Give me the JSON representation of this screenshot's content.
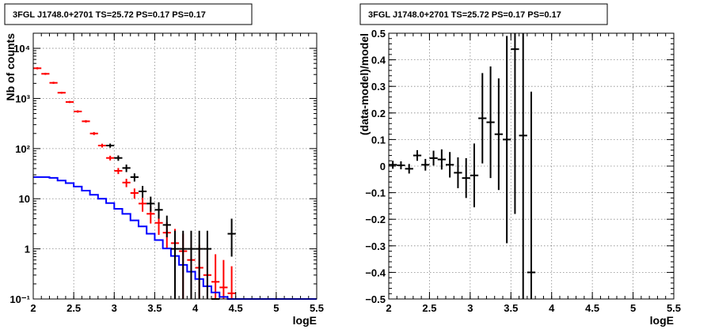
{
  "chart_data": [
    {
      "type": "line",
      "title": "3FGL J1748.0+2701 TS=25.72 PS=0.17 PS=0.17",
      "xlabel": "logE",
      "ylabel": "Nb of counts",
      "xlim": [
        2,
        5.5
      ],
      "ylim": [
        0.1,
        20000
      ],
      "yscale": "log",
      "grid": true,
      "x_ticks": [
        "2",
        "2.5",
        "3",
        "3.5",
        "4",
        "4.5",
        "5",
        "5.5"
      ],
      "y_ticks": [
        {
          "value": 0.1,
          "label": "10⁻¹"
        },
        {
          "value": 1,
          "label": "1"
        },
        {
          "value": 10,
          "label": "10"
        },
        {
          "value": 100,
          "label": "10²"
        },
        {
          "value": 1000,
          "label": "10³"
        },
        {
          "value": 10000,
          "label": "10⁴"
        }
      ],
      "bin_edges": [
        2.0,
        2.1,
        2.2,
        2.3,
        2.4,
        2.5,
        2.6,
        2.7,
        2.8,
        2.9,
        3.0,
        3.1,
        3.2,
        3.3,
        3.4,
        3.5,
        3.6,
        3.7,
        3.8,
        3.9,
        4.0,
        4.1,
        4.2,
        4.3,
        4.4,
        4.5
      ],
      "series": [
        {
          "color": "#ff0000",
          "style": "errorbar",
          "x": [
            2.05,
            2.15,
            2.25,
            2.35,
            2.45,
            2.55,
            2.65,
            2.75,
            2.85,
            2.95,
            3.05,
            3.15,
            3.25,
            3.35,
            3.45,
            3.55,
            3.65,
            3.75,
            3.85,
            3.95,
            4.05,
            4.15,
            4.25,
            4.35,
            4.45
          ],
          "y": [
            4000,
            3100,
            2050,
            1300,
            850,
            550,
            350,
            200,
            115,
            65,
            36,
            21,
            13,
            8,
            5,
            3.3,
            2.1,
            1.3,
            0.9,
            0.6,
            0.42,
            0.3,
            0.22,
            0.17,
            0.13
          ],
          "ylow": [
            3800,
            2950,
            1950,
            1240,
            810,
            520,
            330,
            186,
            105,
            58,
            31,
            17,
            10,
            5.5,
            3.2,
            1.9,
            1.0,
            0.3,
            0.1,
            0.1,
            0.1,
            0.1,
            0.1,
            0.1,
            0.1
          ],
          "yhigh": [
            4200,
            3250,
            2150,
            1360,
            890,
            580,
            370,
            214,
            125,
            72,
            41,
            25,
            16,
            10.5,
            7,
            4.8,
            3.4,
            2.5,
            2.0,
            1.5,
            1.2,
            0.95,
            0.78,
            0.6,
            0.45
          ]
        },
        {
          "color": "#0000ff",
          "style": "step",
          "y": [
            27,
            27,
            26,
            23,
            20.5,
            17.5,
            14.5,
            12,
            10,
            8.2,
            6.3,
            5,
            3.7,
            2.8,
            2,
            1.5,
            1.02,
            0.72,
            0.48,
            0.35,
            0.25,
            0.18,
            0.135,
            0.11,
            0.1,
            0.1,
            0.1,
            0.1,
            0.1,
            0.1,
            0.1,
            0.1,
            0.1,
            0.1,
            0.1
          ]
        },
        {
          "color": "#000000",
          "style": "errorbar",
          "x": [
            2.95,
            3.05,
            3.15,
            3.25,
            3.35,
            3.45,
            3.55,
            3.65,
            3.75,
            3.85,
            3.95,
            4.05,
            4.15,
            4.25,
            4.45
          ],
          "y": [
            115,
            65,
            41,
            27,
            14,
            8,
            6,
            3,
            1,
            1,
            1,
            1,
            1,
            0.1,
            2
          ],
          "ylow": [
            104,
            57,
            34,
            22,
            10.5,
            5.5,
            4,
            1.7,
            0.1,
            0.1,
            0.1,
            0.1,
            0.1,
            0.1,
            0.7
          ],
          "yhigh": [
            126,
            73,
            48,
            32,
            18,
            11,
            8.5,
            4.6,
            2.3,
            2.3,
            2.3,
            2.3,
            2.3,
            0.1,
            4
          ]
        }
      ]
    },
    {
      "type": "scatter",
      "title": "3FGL J1748.0+2701 TS=25.72 PS=0.17 PS=0.17",
      "xlabel": "logE",
      "ylabel": "(data-model)/model",
      "xlim": [
        2,
        5.5
      ],
      "ylim": [
        -0.5,
        0.5
      ],
      "grid": true,
      "x_ticks": [
        "2",
        "2.5",
        "3",
        "3.5",
        "4",
        "4.5",
        "5",
        "5.5"
      ],
      "y_ticks": [
        {
          "value": -0.5,
          "label": "−0.5"
        },
        {
          "value": -0.4,
          "label": "−0.4"
        },
        {
          "value": -0.3,
          "label": "−0.3"
        },
        {
          "value": -0.2,
          "label": "−0.2"
        },
        {
          "value": -0.1,
          "label": "−0.1"
        },
        {
          "value": 0,
          "label": "0"
        },
        {
          "value": 0.1,
          "label": "0.1"
        },
        {
          "value": 0.2,
          "label": "0.2"
        },
        {
          "value": 0.3,
          "label": "0.3"
        },
        {
          "value": 0.4,
          "label": "0.4"
        },
        {
          "value": 0.5,
          "label": "0.5"
        }
      ],
      "series": [
        {
          "color": "#000000",
          "style": "errorbar",
          "x": [
            2.05,
            2.15,
            2.25,
            2.35,
            2.45,
            2.55,
            2.65,
            2.75,
            2.85,
            2.95,
            3.05,
            3.15,
            3.25,
            3.35,
            3.45,
            3.55,
            3.65,
            3.75
          ],
          "y": [
            0.005,
            0.003,
            -0.01,
            0.04,
            0.005,
            0.03,
            0.025,
            0.005,
            -0.025,
            -0.045,
            -0.035,
            0.18,
            0.165,
            0.12,
            0.1,
            0.44,
            0.115,
            -0.4
          ],
          "yerr": [
            0.015,
            0.015,
            0.018,
            0.02,
            0.022,
            0.028,
            0.038,
            0.048,
            0.058,
            0.075,
            0.12,
            0.17,
            0.21,
            0.21,
            0.39,
            0.62,
            0.9,
            0.68
          ]
        }
      ]
    }
  ]
}
